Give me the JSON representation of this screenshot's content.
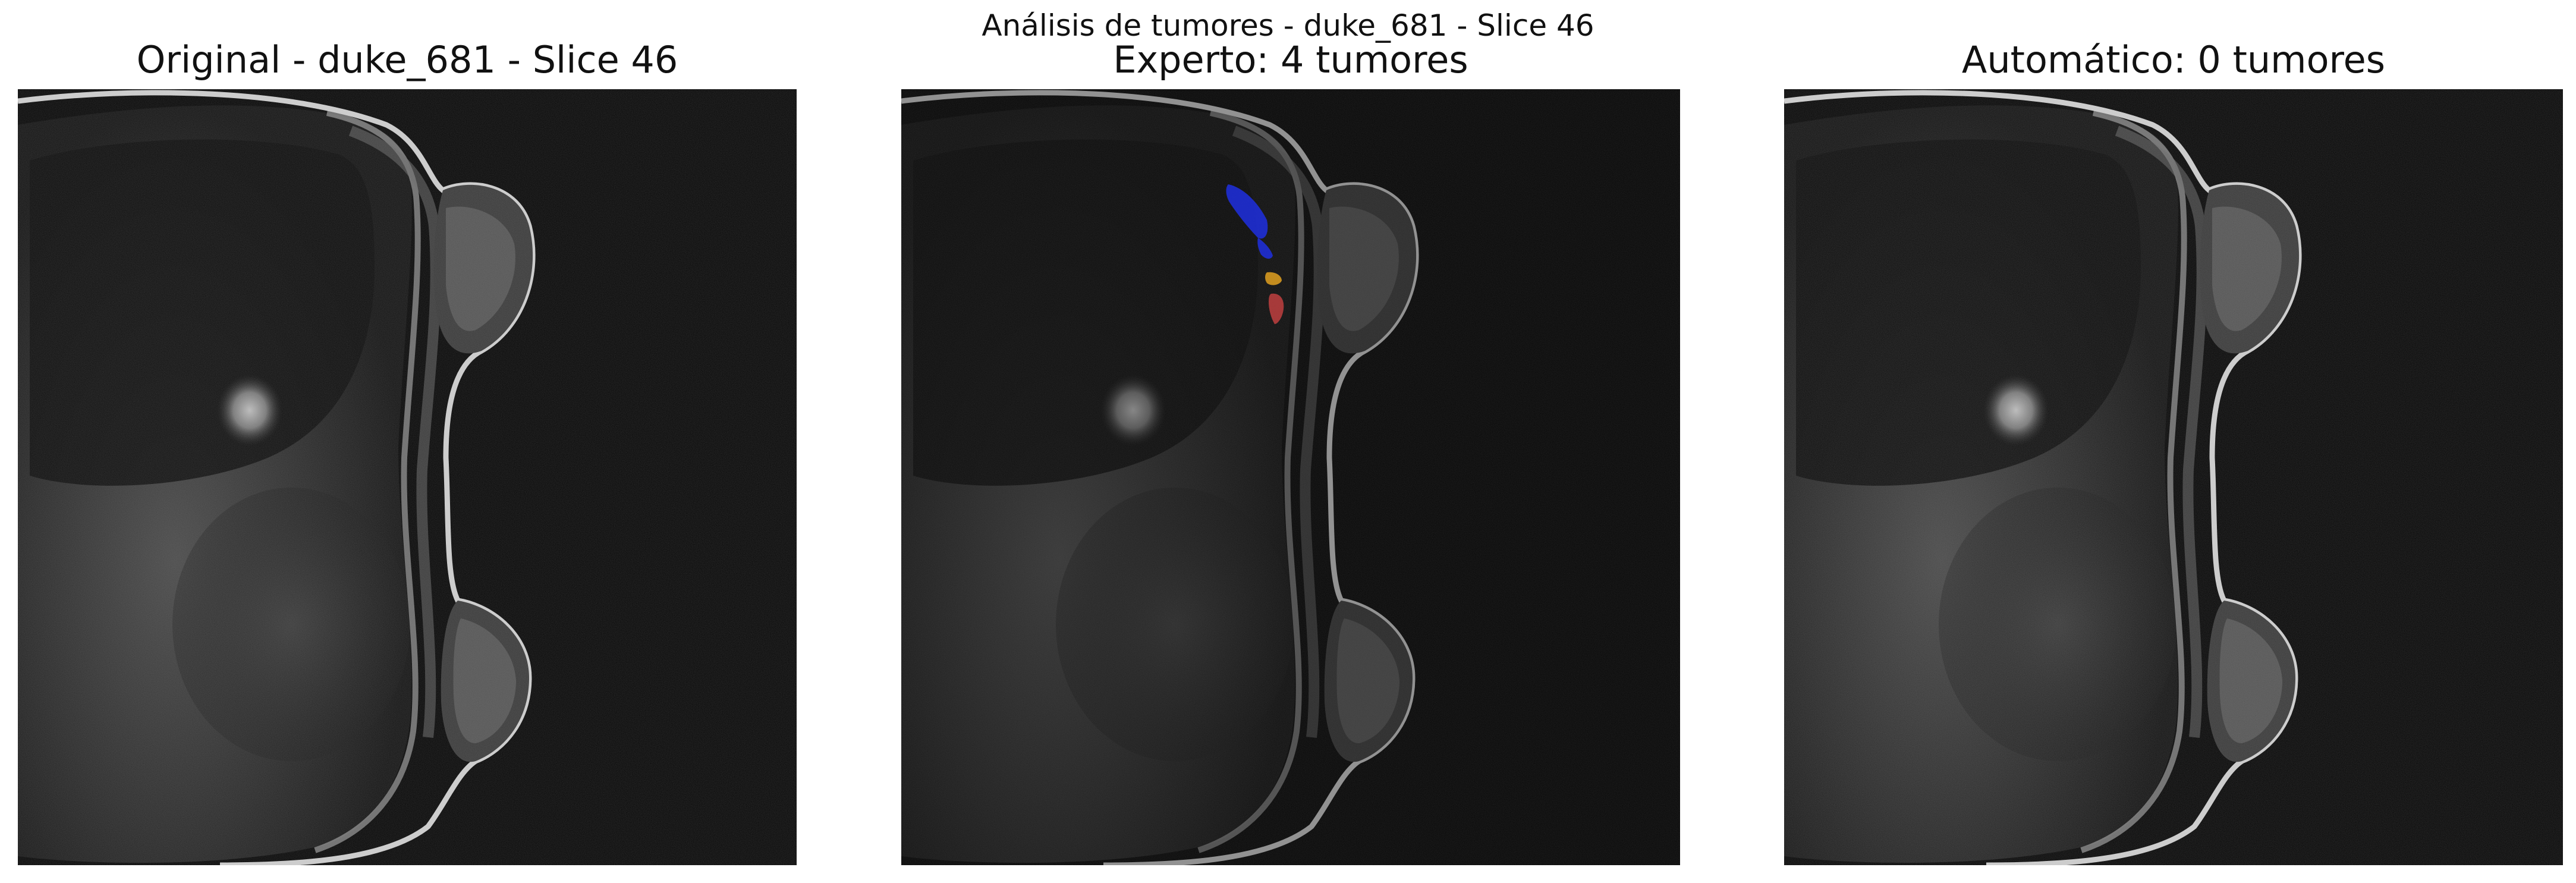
{
  "figure": {
    "suptitle": "Análisis de tumores - duke_681 - Slice 46"
  },
  "panels": [
    {
      "title": "Original - duke_681 - Slice 46",
      "overlay": false
    },
    {
      "title": "Experto: 4 tumores",
      "overlay": true,
      "segment_colors": [
        "#1f2fe0",
        "#1f2fe0",
        "#e0a020",
        "#c04040"
      ]
    },
    {
      "title": "Automático: 0 tumores",
      "overlay": false
    }
  ]
}
